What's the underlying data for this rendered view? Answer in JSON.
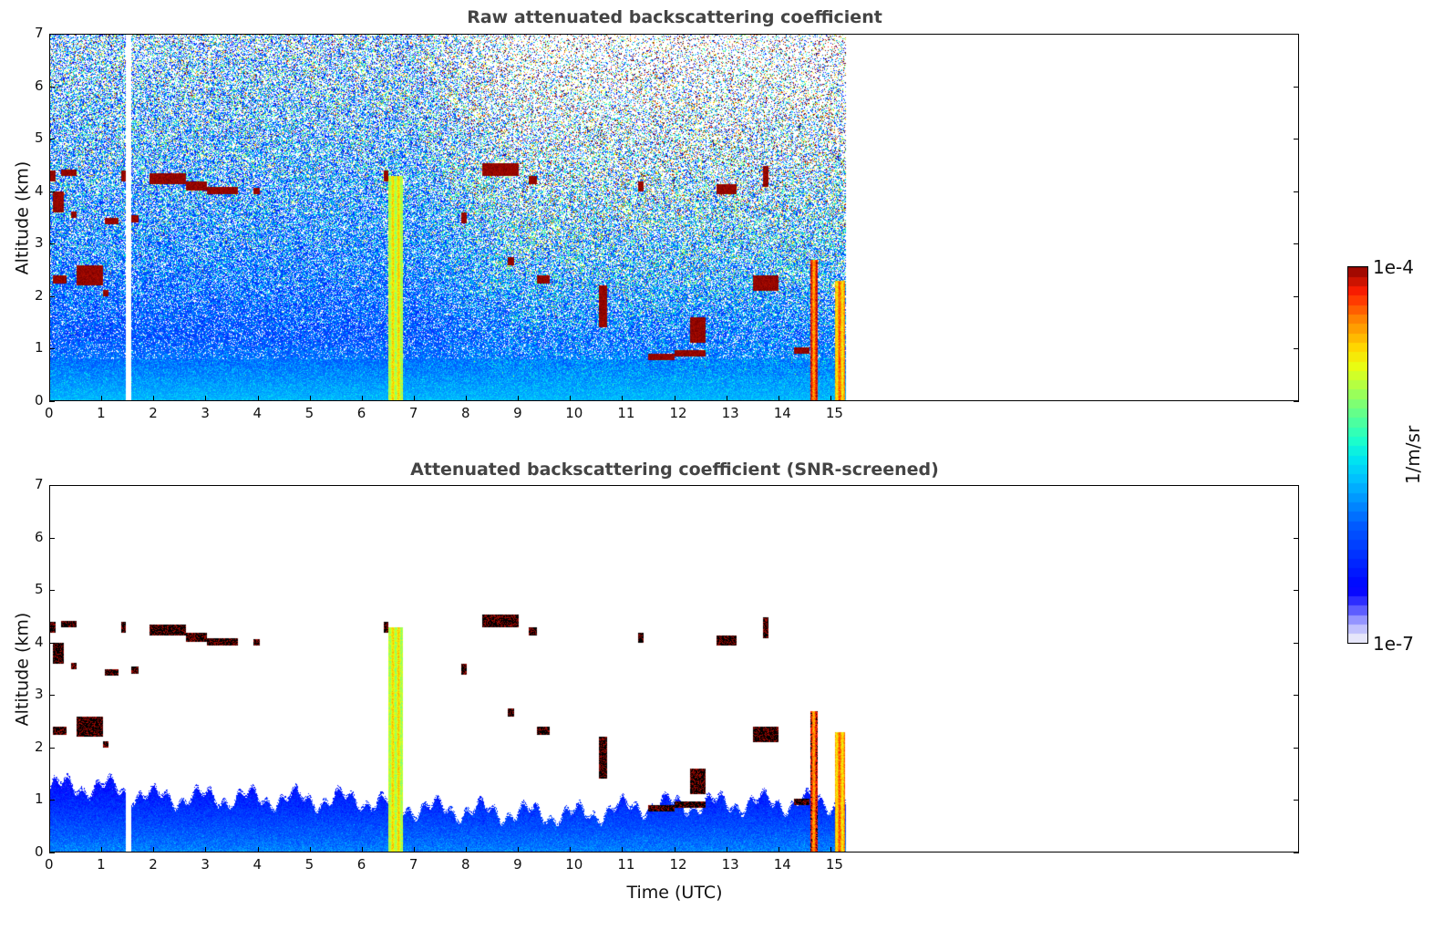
{
  "chart_data": [
    {
      "type": "heatmap",
      "title": "Raw attenuated backscattering coefficient",
      "xlabel": "",
      "ylabel": "Altitude (km)",
      "xlim": [
        0,
        24
      ],
      "ylim": [
        0,
        7
      ],
      "xticks": [
        "0",
        "1",
        "2",
        "3",
        "4",
        "5",
        "6",
        "7",
        "8",
        "9",
        "10",
        "11",
        "12",
        "13",
        "14",
        "15"
      ],
      "yticks": [
        "0",
        "1",
        "2",
        "3",
        "4",
        "5",
        "6",
        "7"
      ],
      "screened": false
    },
    {
      "type": "heatmap",
      "title": "Attenuated backscattering coefficient (SNR-screened)",
      "xlabel": "Time (UTC)",
      "ylabel": "Altitude (km)",
      "xlim": [
        0,
        24
      ],
      "ylim": [
        0,
        7
      ],
      "xticks": [
        "0",
        "1",
        "2",
        "3",
        "4",
        "5",
        "6",
        "7",
        "8",
        "9",
        "10",
        "11",
        "12",
        "13",
        "14",
        "15"
      ],
      "yticks": [
        "0",
        "1",
        "2",
        "3",
        "4",
        "5",
        "6",
        "7"
      ],
      "screened": true
    }
  ],
  "colorbar": {
    "label": "1/m/sr",
    "max_label": "1e-4",
    "min_label": "1e-7",
    "log_range": [
      -7,
      -4
    ]
  },
  "data_extent": {
    "start_utc": 0,
    "end_utc": 15.3,
    "gap_utc": [
      1.45,
      1.55
    ]
  },
  "boundary_layer_top_km": [
    [
      0,
      1.3
    ],
    [
      1,
      1.3
    ],
    [
      2,
      1.1
    ],
    [
      6,
      1.05
    ],
    [
      6.9,
      0.9
    ],
    [
      10,
      0.75
    ],
    [
      11.5,
      0.95
    ],
    [
      14.5,
      1.0
    ],
    [
      15.3,
      1.0
    ]
  ],
  "cloud_layers": [
    [
      0,
      0.1,
      4.2,
      4.4
    ],
    [
      0.05,
      0.25,
      3.6,
      4.0
    ],
    [
      0.2,
      0.5,
      4.3,
      4.42
    ],
    [
      0.4,
      0.5,
      3.5,
      3.62
    ],
    [
      1.05,
      1.3,
      3.38,
      3.5
    ],
    [
      1.55,
      1.7,
      3.42,
      3.55
    ],
    [
      1.35,
      1.45,
      4.2,
      4.4
    ],
    [
      0.05,
      0.3,
      2.25,
      2.4
    ],
    [
      0.5,
      1.0,
      2.2,
      2.6
    ],
    [
      1.0,
      1.12,
      2.0,
      2.12
    ],
    [
      1.9,
      2.6,
      4.15,
      4.35
    ],
    [
      2.6,
      3.0,
      4.03,
      4.2
    ],
    [
      3.0,
      3.6,
      3.95,
      4.1
    ],
    [
      3.9,
      4.02,
      3.95,
      4.08
    ],
    [
      8.3,
      9.0,
      4.3,
      4.55
    ],
    [
      9.35,
      9.6,
      2.25,
      2.4
    ],
    [
      7.9,
      8.0,
      3.4,
      3.6
    ],
    [
      8.8,
      8.92,
      2.6,
      2.75
    ],
    [
      11.5,
      12.0,
      0.78,
      0.9
    ],
    [
      12.0,
      12.6,
      0.85,
      0.97
    ],
    [
      14.3,
      14.6,
      0.9,
      1.02
    ],
    [
      12.8,
      13.2,
      3.95,
      4.15
    ],
    [
      11.3,
      11.4,
      4.0,
      4.2
    ],
    [
      13.5,
      14.0,
      2.1,
      2.4
    ],
    [
      10.55,
      10.7,
      1.4,
      2.2
    ],
    [
      12.3,
      12.6,
      1.1,
      1.6
    ],
    [
      9.2,
      9.35,
      4.15,
      4.3
    ],
    [
      13.7,
      13.8,
      4.1,
      4.5
    ],
    [
      6.4,
      6.5,
      4.2,
      4.4
    ]
  ],
  "precipitation_streaks": [
    [
      6.5,
      6.78,
      0,
      4.3,
      -4.7
    ],
    [
      14.62,
      14.75,
      0,
      2.7,
      -4.2
    ],
    [
      15.08,
      15.27,
      0,
      2.3,
      -4.4
    ]
  ]
}
